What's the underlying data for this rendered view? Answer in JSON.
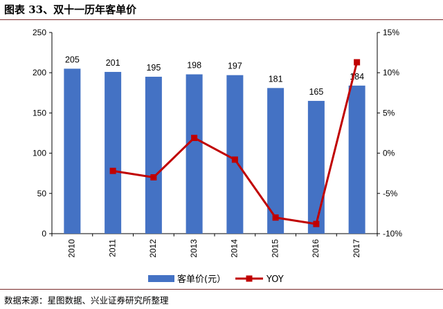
{
  "figure_title": "图表 33、双十一历年客单价",
  "source_note": "数据来源：星图数据、兴业证券研究所整理",
  "colors": {
    "bar": "#4472C4",
    "line": "#C00000",
    "rule": "#7a2a2a",
    "axis": "#000000"
  },
  "chart_data": {
    "type": "bar",
    "categories": [
      "2010",
      "2011",
      "2012",
      "2013",
      "2014",
      "2015",
      "2016",
      "2017"
    ],
    "series": [
      {
        "name": "客单价(元）",
        "type": "bar",
        "axis": "left",
        "values": [
          205,
          201,
          195,
          198,
          197,
          181,
          165,
          184
        ],
        "data_labels": [
          "205",
          "201",
          "195",
          "198",
          "197",
          "181",
          "165",
          "184"
        ]
      },
      {
        "name": "YOY",
        "type": "line",
        "axis": "right",
        "values": [
          null,
          -2.2,
          -3.0,
          1.9,
          -0.8,
          -8.0,
          -8.8,
          11.3
        ]
      }
    ],
    "y_left": {
      "min": 0,
      "max": 250,
      "ticks": [
        "0",
        "50",
        "100",
        "150",
        "200",
        "250"
      ]
    },
    "y_right": {
      "min": -10,
      "max": 15,
      "ticks": [
        "-10%",
        "-5%",
        "0%",
        "5%",
        "10%",
        "15%"
      ]
    },
    "legend_position": "bottom",
    "grid": false
  }
}
